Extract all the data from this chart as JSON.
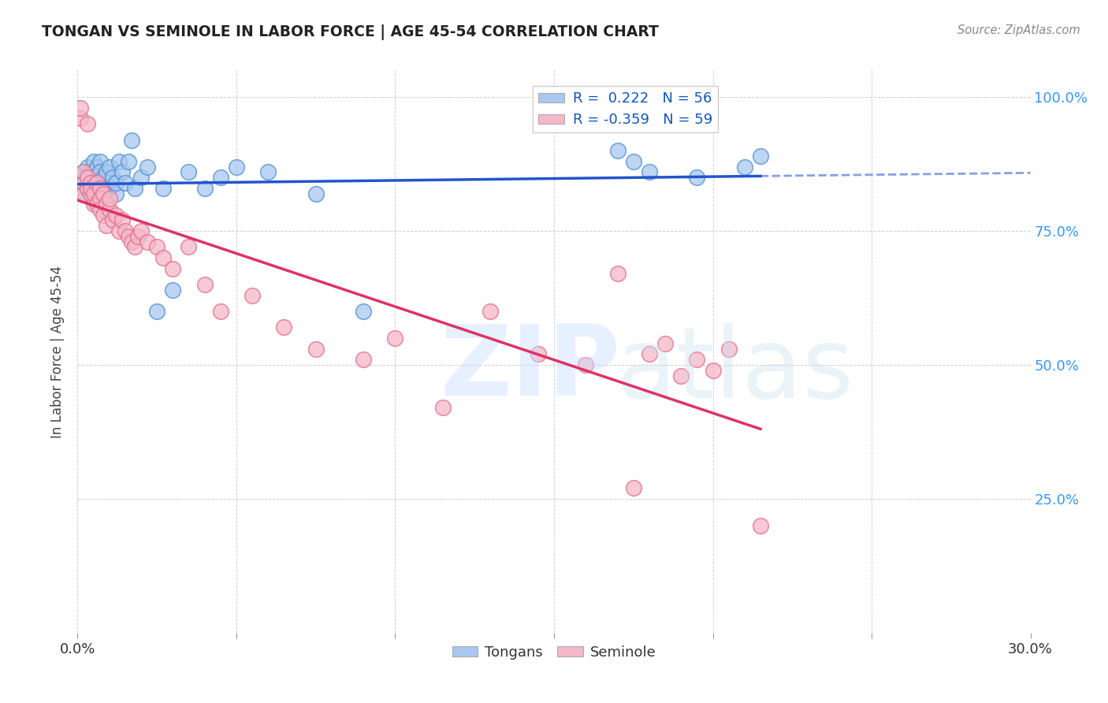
{
  "title": "TONGAN VS SEMINOLE IN LABOR FORCE | AGE 45-54 CORRELATION CHART",
  "source": "Source: ZipAtlas.com",
  "ylabel": "In Labor Force | Age 45-54",
  "xmin": 0.0,
  "xmax": 0.3,
  "ymin": 0.0,
  "ymax": 1.05,
  "x_ticks": [
    0.0,
    0.05,
    0.1,
    0.15,
    0.2,
    0.25,
    0.3
  ],
  "y_ticks_right": [
    0.25,
    0.5,
    0.75,
    1.0
  ],
  "y_tick_labels_right": [
    "25.0%",
    "50.0%",
    "75.0%",
    "100.0%"
  ],
  "blue_face_color": "#A8C8F0",
  "blue_edge_color": "#5090D0",
  "pink_face_color": "#F5B8C8",
  "pink_edge_color": "#E07090",
  "blue_line_color": "#2255CC",
  "pink_line_color": "#DD3366",
  "legend_label_blue": "Tongans",
  "legend_label_pink": "Seminole",
  "blue_scatter_x": [
    0.001,
    0.001,
    0.002,
    0.002,
    0.002,
    0.002,
    0.003,
    0.003,
    0.003,
    0.003,
    0.004,
    0.004,
    0.004,
    0.005,
    0.005,
    0.005,
    0.005,
    0.006,
    0.006,
    0.006,
    0.007,
    0.007,
    0.007,
    0.008,
    0.008,
    0.009,
    0.009,
    0.01,
    0.01,
    0.011,
    0.012,
    0.012,
    0.013,
    0.014,
    0.015,
    0.016,
    0.017,
    0.018,
    0.02,
    0.022,
    0.025,
    0.027,
    0.03,
    0.035,
    0.04,
    0.045,
    0.05,
    0.06,
    0.075,
    0.09,
    0.17,
    0.175,
    0.18,
    0.195,
    0.21,
    0.215
  ],
  "blue_scatter_y": [
    0.83,
    0.85,
    0.84,
    0.86,
    0.83,
    0.82,
    0.87,
    0.85,
    0.84,
    0.83,
    0.86,
    0.84,
    0.85,
    0.88,
    0.86,
    0.84,
    0.82,
    0.85,
    0.87,
    0.83,
    0.88,
    0.84,
    0.86,
    0.83,
    0.85,
    0.84,
    0.86,
    0.87,
    0.83,
    0.85,
    0.82,
    0.84,
    0.88,
    0.86,
    0.84,
    0.88,
    0.92,
    0.83,
    0.85,
    0.87,
    0.6,
    0.83,
    0.64,
    0.86,
    0.83,
    0.85,
    0.87,
    0.86,
    0.82,
    0.6,
    0.9,
    0.88,
    0.86,
    0.85,
    0.87,
    0.89
  ],
  "pink_scatter_x": [
    0.001,
    0.001,
    0.002,
    0.002,
    0.002,
    0.003,
    0.003,
    0.003,
    0.004,
    0.004,
    0.004,
    0.005,
    0.005,
    0.006,
    0.006,
    0.007,
    0.007,
    0.007,
    0.008,
    0.008,
    0.009,
    0.009,
    0.01,
    0.01,
    0.011,
    0.012,
    0.013,
    0.014,
    0.015,
    0.016,
    0.017,
    0.018,
    0.019,
    0.02,
    0.022,
    0.025,
    0.027,
    0.03,
    0.035,
    0.04,
    0.045,
    0.055,
    0.065,
    0.075,
    0.09,
    0.1,
    0.115,
    0.13,
    0.145,
    0.16,
    0.17,
    0.175,
    0.18,
    0.185,
    0.19,
    0.195,
    0.2,
    0.205,
    0.215
  ],
  "pink_scatter_y": [
    0.96,
    0.98,
    0.84,
    0.86,
    0.82,
    0.95,
    0.83,
    0.85,
    0.84,
    0.82,
    0.83,
    0.8,
    0.82,
    0.84,
    0.8,
    0.83,
    0.81,
    0.79,
    0.82,
    0.78,
    0.8,
    0.76,
    0.79,
    0.81,
    0.77,
    0.78,
    0.75,
    0.77,
    0.75,
    0.74,
    0.73,
    0.72,
    0.74,
    0.75,
    0.73,
    0.72,
    0.7,
    0.68,
    0.72,
    0.65,
    0.6,
    0.63,
    0.57,
    0.53,
    0.51,
    0.55,
    0.42,
    0.6,
    0.52,
    0.5,
    0.67,
    0.27,
    0.52,
    0.54,
    0.48,
    0.51,
    0.49,
    0.53,
    0.2
  ]
}
